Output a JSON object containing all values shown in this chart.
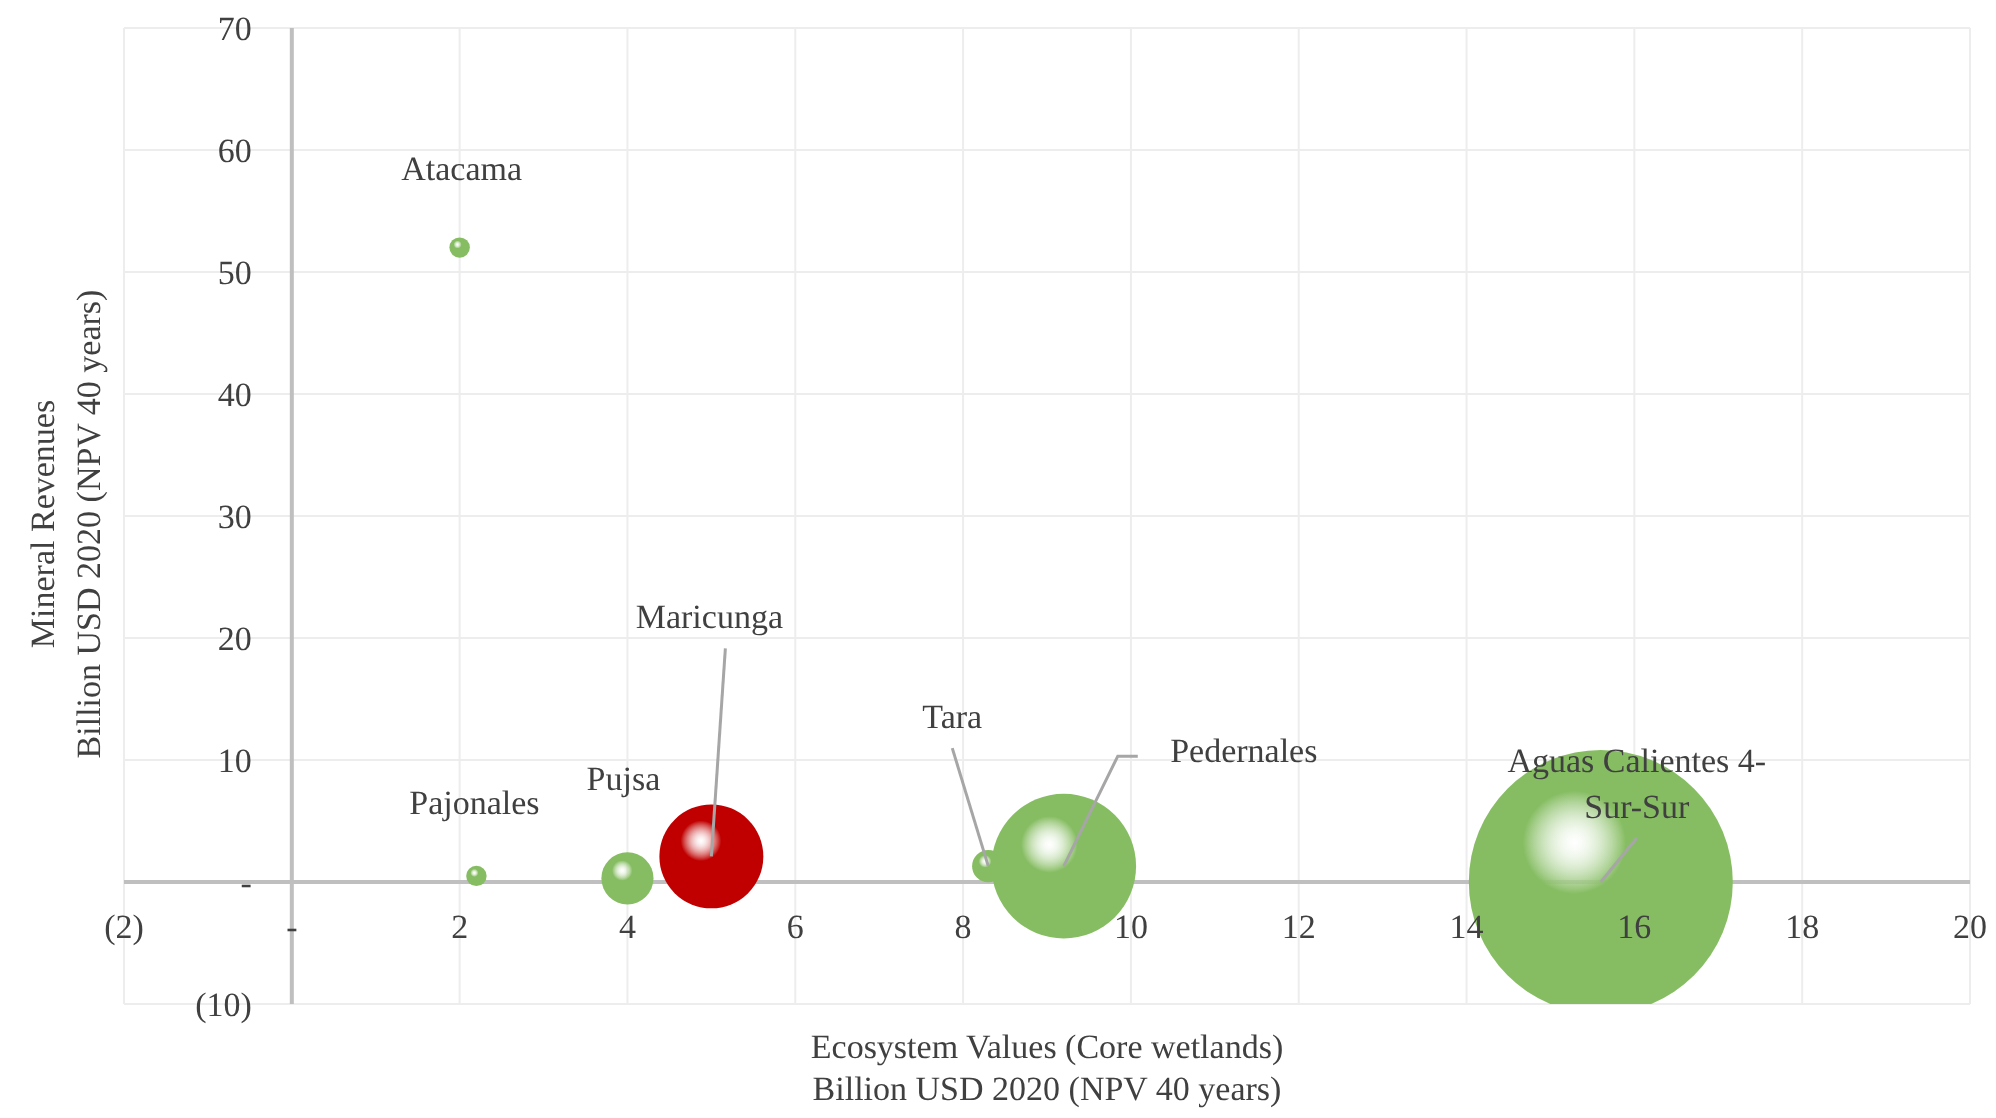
{
  "chart_data": {
    "type": "bubble",
    "x": [
      2.0,
      2.2,
      4.0,
      5.0,
      8.3,
      9.2,
      15.6
    ],
    "values": [
      52,
      0.5,
      0.3,
      2.1,
      1.3,
      1.3,
      0
    ],
    "sizes": [
      0.006,
      0.006,
      0.039,
      0.155,
      0.015,
      0.3,
      1
    ],
    "colors": [
      "#86bd62",
      "#86bd62",
      "#86bd62",
      "#c00000",
      "#86bd62",
      "#86bd62",
      "#86bd62"
    ],
    "xlabel": "Ecosystem Values (Core wetlands)\nBillion USD 2020 (NPV 40 years)",
    "ylabel": "Mineral Revenues\nBillion USD 2020 (NPV 40 years)",
    "xlim": [
      -2,
      20
    ],
    "xticks": [
      {
        "value": -2,
        "label": "(2)"
      },
      {
        "value": 0,
        "label": "-"
      },
      2,
      4,
      6,
      8,
      10,
      12,
      14,
      16,
      18,
      20
    ],
    "ylim": [
      -10,
      70
    ],
    "yticks": [
      {
        "value": -10,
        "label": "(10)"
      },
      {
        "value": 0,
        "label": "-"
      },
      10,
      20,
      30,
      40,
      50,
      60,
      70
    ],
    "grid": true,
    "annotations": [
      {
        "text": "Atacama",
        "x": 2.0,
        "y": 52
      },
      {
        "text": "Pajonales",
        "x": 2.2,
        "y": 0.5
      },
      {
        "text": "Pujsa",
        "x": 4.0,
        "y": 0.3
      },
      {
        "text": "Maricunga",
        "x": 5.0,
        "y": 2.1
      },
      {
        "text": "Tara",
        "x": 8.3,
        "y": 1.3
      },
      {
        "text": "Pedernales",
        "x": 9.2,
        "y": 1.3
      },
      {
        "text": "Aguas Calientes 4-Sur-Sur",
        "x": 15.6,
        "y": 0
      }
    ]
  }
}
